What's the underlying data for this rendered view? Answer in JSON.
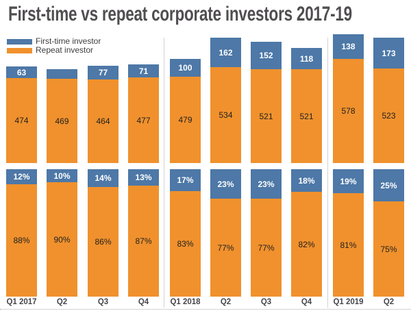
{
  "chart_data": {
    "type": "bar",
    "subtype": "stacked-columns-two-panels",
    "title": "First-time vs repeat corporate investors 2017-19",
    "categories": [
      "Q1 2017",
      "Q2",
      "Q3",
      "Q4",
      "Q1 2018",
      "Q2",
      "Q3",
      "Q4",
      "Q1 2019",
      "Q2"
    ],
    "legend_position": "top-left",
    "grid": false,
    "year_divider_after_indices": [
      3,
      7
    ],
    "panels": [
      {
        "id": "counts",
        "description": "absolute number of investors",
        "ylim": [
          0,
          716
        ],
        "series": [
          {
            "name": "First-time investor",
            "color": "#4d78a7",
            "values": [
              63,
              52,
              77,
              71,
              100,
              162,
              152,
              118,
              138,
              173
            ],
            "labels": [
              "63",
              "",
              "77",
              "71",
              "100",
              "162",
              "152",
              "118",
              "138",
              "173"
            ]
          },
          {
            "name": "Repeat investor",
            "color": "#f0912d",
            "values": [
              474,
              469,
              464,
              477,
              479,
              534,
              521,
              521,
              578,
              523
            ],
            "labels": [
              "474",
              "469",
              "464",
              "477",
              "479",
              "534",
              "521",
              "521",
              "578",
              "523"
            ]
          }
        ]
      },
      {
        "id": "percentages",
        "description": "share of investors",
        "ylim": [
          0,
          100
        ],
        "series": [
          {
            "name": "First-time investor",
            "color": "#4d78a7",
            "values": [
              12,
              10,
              14,
              13,
              17,
              23,
              23,
              18,
              19,
              25
            ],
            "labels": [
              "12%",
              "10%",
              "14%",
              "13%",
              "17%",
              "23%",
              "23%",
              "18%",
              "19%",
              "25%"
            ]
          },
          {
            "name": "Repeat investor",
            "color": "#f0912d",
            "values": [
              88,
              90,
              86,
              87,
              83,
              77,
              77,
              82,
              81,
              75
            ],
            "labels": [
              "88%",
              "90%",
              "86%",
              "87%",
              "83%",
              "77%",
              "77%",
              "82%",
              "81%",
              "75%"
            ]
          }
        ]
      }
    ]
  }
}
